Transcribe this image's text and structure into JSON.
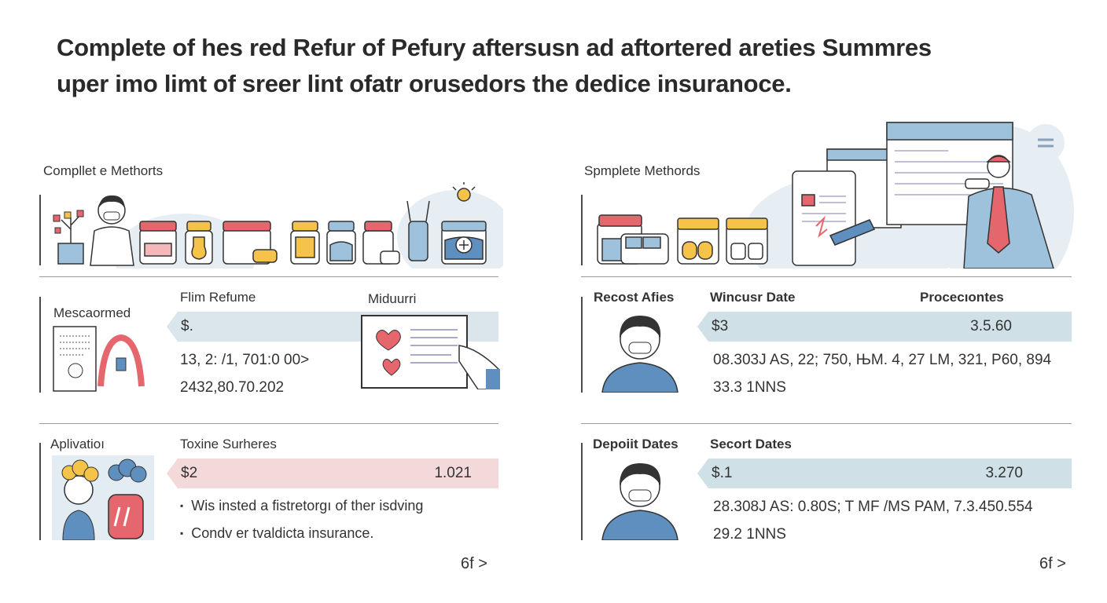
{
  "title": {
    "line1": "Complete of hes red Refur of Pefury aftersusn ad aftortered areties Summres",
    "line2": "uper imo limt of sreer lint ofatr orusedors the dedice insuranoce."
  },
  "left": {
    "methods_title": "Compllet e Methorts",
    "row1": {
      "label": "Mescaormed",
      "col1_header": "Flim Refume",
      "col2_header": "Miduurri",
      "band_value": "$.",
      "line1": "13, 2: /1, 701:0 00>",
      "line2": "2432,80.70.202"
    },
    "row2": {
      "label": "Aplivatioı",
      "col1_header": "Toxine Surheres",
      "band_left": "$2",
      "band_right": "1.021",
      "bullets": [
        "Wis insted a fistretorgı of ther isdving",
        "Condv er tvaldicta insurance."
      ]
    },
    "next_label": "6f >"
  },
  "right": {
    "methods_title": "Spmplete Methords",
    "row1": {
      "label": "Recost Afies",
      "col1_header": "Wincusr Date",
      "col2_header": "Procecıontes",
      "band_left": "$3",
      "band_right": "3.5.60",
      "line1": "08.303J AS, 22; 750, ЊM. 4, 27 LM, 321, P60, 894",
      "line2": "33.3 1NNS"
    },
    "row2": {
      "label": "Depoiit Dates",
      "col1_header": "Secort Dates",
      "band_left": "$.1",
      "band_right": "3.270",
      "line1": "28.308J AS: 0.80S; T MF /MS PAM, 7.3.450.554",
      "line2": "29.2 1NNS"
    },
    "next_label": "6f >"
  },
  "colors": {
    "accent_red": "#e5676d",
    "accent_blue": "#dbe6ec",
    "accent_yellow": "#f5c24a"
  }
}
